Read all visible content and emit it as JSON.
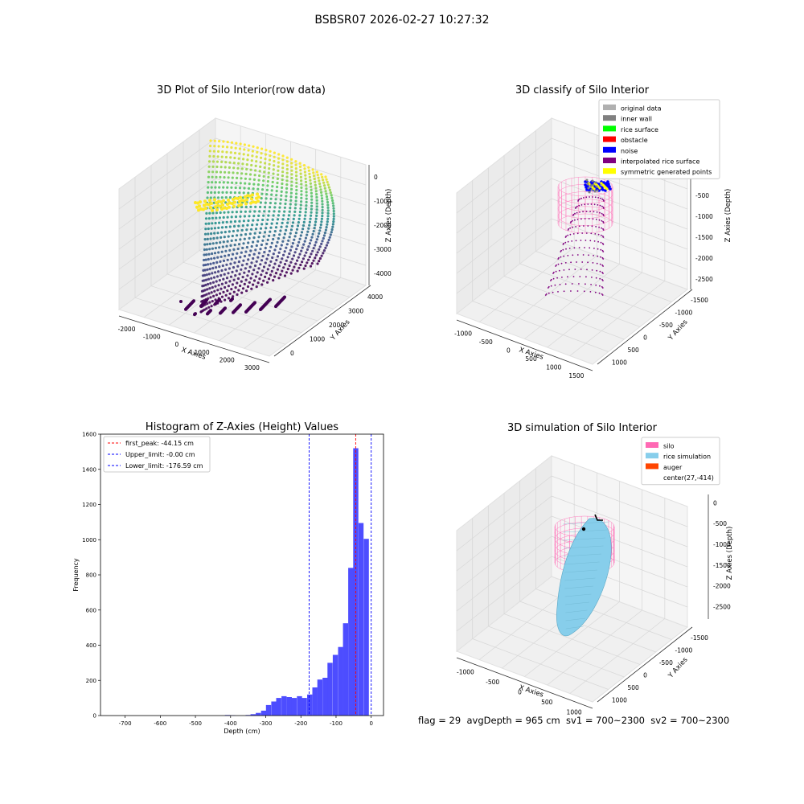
{
  "suptitle": "BSBSR07 2026-02-27 10:27:32",
  "footer": {
    "text": "flag = 29  avgDepth = 965 cm  sv1 = 700~2300  sv2 = 700~2300"
  },
  "chart_data": [
    {
      "id": "raw",
      "type": "scatter",
      "projection": "3d",
      "title": "3D Plot of Silo Interior(row data)",
      "xlabel": "X Axies",
      "ylabel": "Y Axies",
      "zlabel": "Z Axies (Depth)",
      "x_ticks": [
        "-2000",
        "-1000",
        "0",
        "1000",
        "2000",
        "3000"
      ],
      "y_ticks": [
        "0",
        "1000",
        "2000",
        "3000",
        "4000"
      ],
      "z_ticks": [
        "0",
        "-1000",
        "-2000",
        "-3000",
        "-4000"
      ],
      "colormap": [
        "#440154",
        "#3b528b",
        "#21918c",
        "#5ec962",
        "#fde725"
      ],
      "grid": true
    },
    {
      "id": "classify",
      "type": "scatter",
      "projection": "3d",
      "title": "3D classify of Silo Interior",
      "xlabel": "X Axies",
      "ylabel": "Y Axies",
      "zlabel": "Z Axies (Depth)",
      "x_ticks": [
        "-1000",
        "-500",
        "0",
        "500",
        "1000",
        "1500"
      ],
      "y_ticks": [
        "1000",
        "500",
        "0",
        "-500",
        "-1000",
        "-1500"
      ],
      "z_ticks": [
        "-500",
        "-1000",
        "-1500",
        "-2000",
        "-2500"
      ],
      "legend_position": "top-right",
      "legend": [
        {
          "label": "original data",
          "color": "#b0b0b0"
        },
        {
          "label": "inner wall",
          "color": "#808080"
        },
        {
          "label": "rice surface",
          "color": "#00ff00"
        },
        {
          "label": "obstacle",
          "color": "#ff0000"
        },
        {
          "label": "noise",
          "color": "#0000ff"
        },
        {
          "label": "interpolated rice surface",
          "color": "#800080"
        },
        {
          "label": "symmetric generated points",
          "color": "#ffff00"
        }
      ],
      "grid": true
    },
    {
      "id": "hist",
      "type": "bar",
      "title": "Histogram of Z-Axies (Height) Values",
      "xlabel": "Depth (cm)",
      "ylabel": "Frequency",
      "xlim": [
        -770,
        35
      ],
      "ylim": [
        0,
        1600
      ],
      "x_ticks": [
        -700,
        -600,
        -500,
        -400,
        -300,
        -200,
        -100,
        0
      ],
      "y_ticks": [
        0,
        200,
        400,
        600,
        800,
        1000,
        1200,
        1400,
        1600
      ],
      "bar_color": "#4d4dff",
      "bin_width": 14.6,
      "bins": [
        {
          "x": -409,
          "count": 3
        },
        {
          "x": -394,
          "count": 2
        },
        {
          "x": -350,
          "count": 3
        },
        {
          "x": -336,
          "count": 8
        },
        {
          "x": -321,
          "count": 15
        },
        {
          "x": -306,
          "count": 28
        },
        {
          "x": -292,
          "count": 60
        },
        {
          "x": -277,
          "count": 80
        },
        {
          "x": -263,
          "count": 100
        },
        {
          "x": -248,
          "count": 110
        },
        {
          "x": -233,
          "count": 105
        },
        {
          "x": -219,
          "count": 100
        },
        {
          "x": -204,
          "count": 110
        },
        {
          "x": -190,
          "count": 100
        },
        {
          "x": -175,
          "count": 120
        },
        {
          "x": -160,
          "count": 160
        },
        {
          "x": -146,
          "count": 205
        },
        {
          "x": -131,
          "count": 215
        },
        {
          "x": -117,
          "count": 300
        },
        {
          "x": -102,
          "count": 345
        },
        {
          "x": -87,
          "count": 390
        },
        {
          "x": -73,
          "count": 525
        },
        {
          "x": -58,
          "count": 840
        },
        {
          "x": -44,
          "count": 1520
        },
        {
          "x": -29,
          "count": 1095
        },
        {
          "x": -14,
          "count": 1005
        }
      ],
      "vlines": [
        {
          "x": -44.15,
          "color": "#ff0000",
          "label": "first_peak: -44.15 cm"
        },
        {
          "x": -0.0,
          "color": "#0000ff",
          "label": "Upper_limit: -0.00 cm"
        },
        {
          "x": -176.59,
          "color": "#0000ff",
          "label": "Lower_limit: -176.59 cm"
        }
      ],
      "legend_position": "top-left",
      "grid": false
    },
    {
      "id": "sim",
      "type": "scatter",
      "projection": "3d",
      "title": "3D simulation of Silo Interior",
      "xlabel": "X Axies",
      "ylabel": "Y Axies",
      "zlabel": "Z Axies (Depth)",
      "x_ticks": [
        "-1000",
        "-500",
        "0",
        "500",
        "1000"
      ],
      "y_ticks": [
        "1000",
        "500",
        "0",
        "-500",
        "-1000",
        "-1500"
      ],
      "z_ticks": [
        "0",
        "-500",
        "-1000",
        "-1500",
        "-2000",
        "-2500"
      ],
      "legend_position": "top-right",
      "legend": [
        {
          "label": "silo",
          "color": "#ff69b4"
        },
        {
          "label": "rice simulation",
          "color": "#87ceeb"
        },
        {
          "label": "auger",
          "color": "#ff4500"
        },
        {
          "label": "center(27,-414)",
          "color": ""
        }
      ],
      "grid": true
    }
  ]
}
